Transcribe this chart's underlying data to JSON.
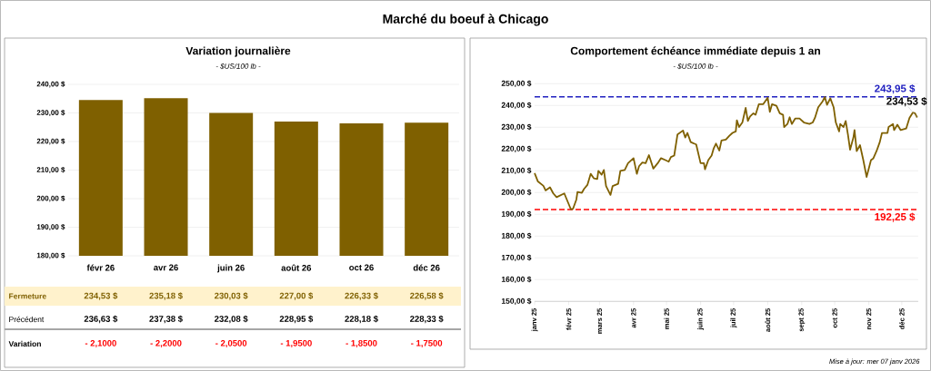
{
  "chart_data": [
    {
      "type": "other",
      "title": "Marché du boeuf à Chicago",
      "annotations": [
        "Mise à jour: mer 07 janv 2026"
      ]
    },
    {
      "type": "bar",
      "title": "Variation journalière",
      "subtitle": "- $US/100 lb -",
      "categories": [
        "févr 26",
        "avr 26",
        "juin 26",
        "août 26",
        "oct 26",
        "déc 26"
      ],
      "series": [
        {
          "name": "Fermeture",
          "color": "#7f6000",
          "values": [
            234.53,
            235.18,
            230.03,
            227.0,
            226.33,
            226.58
          ],
          "value_labels": [
            "234,53  $",
            "235,18  $",
            "230,03  $",
            "227,00  $",
            "226,33  $",
            "226,58  $"
          ]
        }
      ],
      "ylim": [
        180,
        240
      ],
      "yticks": [
        {
          "value": 180,
          "label": "180,00 $"
        },
        {
          "value": 190,
          "label": "190,00 $"
        },
        {
          "value": 200,
          "label": "200,00 $"
        },
        {
          "value": 210,
          "label": "210,00 $"
        },
        {
          "value": 220,
          "label": "220,00 $"
        },
        {
          "value": 230,
          "label": "230,00 $"
        },
        {
          "value": 240,
          "label": "240,00 $"
        }
      ],
      "grid": "y"
    },
    {
      "type": "other",
      "annotations": [
        "Précédent",
        "236,63  $",
        "237,38  $",
        "232,08  $",
        "228,95  $",
        "228,18  $",
        "228,33  $",
        "Variation",
        "- 2,1000",
        "- 2,2000",
        "- 2,0500",
        "- 1,9500",
        "- 1,8500",
        "- 1,7500"
      ]
    },
    {
      "type": "line",
      "title": "Comportement échéance immédiate depuis 1 an",
      "subtitle": "- $US/100 lb -",
      "x": [
        "2025-01-01",
        "2025-01-04",
        "2025-01-09",
        "2025-01-11",
        "2025-01-15",
        "2025-01-18",
        "2025-01-21",
        "2025-01-28",
        "2025-02-03",
        "2025-02-05",
        "2025-02-08",
        "2025-02-09",
        "2025-02-13",
        "2025-02-15",
        "2025-02-18",
        "2025-02-21",
        "2025-02-24",
        "2025-02-27",
        "2025-02-28",
        "2025-03-03",
        "2025-03-05",
        "2025-03-07",
        "2025-03-11",
        "2025-03-13",
        "2025-03-18",
        "2025-03-20",
        "2025-03-24",
        "2025-03-27",
        "2025-04-01",
        "2025-04-04",
        "2025-04-06",
        "2025-04-09",
        "2025-04-12",
        "2025-04-15",
        "2025-04-19",
        "2025-04-23",
        "2025-04-26",
        "2025-04-30",
        "2025-05-03",
        "2025-05-05",
        "2025-05-08",
        "2025-05-11",
        "2025-05-16",
        "2025-05-18",
        "2025-05-20",
        "2025-05-23",
        "2025-05-28",
        "2025-06-01",
        "2025-06-04",
        "2025-06-05",
        "2025-06-08",
        "2025-06-11",
        "2025-06-13",
        "2025-06-15",
        "2025-06-18",
        "2025-06-20",
        "2025-06-24",
        "2025-06-27",
        "2025-06-30",
        "2025-07-03",
        "2025-07-04",
        "2025-07-06",
        "2025-07-09",
        "2025-07-12",
        "2025-07-14",
        "2025-07-16",
        "2025-07-19",
        "2025-07-21",
        "2025-07-24",
        "2025-07-28",
        "2025-08-01",
        "2025-08-03",
        "2025-08-05",
        "2025-08-09",
        "2025-08-12",
        "2025-08-15",
        "2025-08-16",
        "2025-08-19",
        "2025-08-21",
        "2025-08-23",
        "2025-08-26",
        "2025-08-30",
        "2025-09-03",
        "2025-09-08",
        "2025-09-11",
        "2025-09-13",
        "2025-09-16",
        "2025-09-20",
        "2025-09-22",
        "2025-09-24",
        "2025-09-27",
        "2025-09-30",
        "2025-10-02",
        "2025-10-05",
        "2025-10-06",
        "2025-10-09",
        "2025-10-11",
        "2025-10-13",
        "2025-10-15",
        "2025-10-18",
        "2025-10-19",
        "2025-10-21",
        "2025-10-24",
        "2025-10-27",
        "2025-10-30",
        "2025-11-03",
        "2025-11-05",
        "2025-11-08",
        "2025-11-11",
        "2025-11-13",
        "2025-11-18",
        "2025-11-19",
        "2025-11-23",
        "2025-11-24",
        "2025-11-27",
        "2025-11-30",
        "2025-12-05",
        "2025-12-08",
        "2025-12-11",
        "2025-12-13",
        "2025-12-15"
      ],
      "series": [
        {
          "color": "#7f6000",
          "values": [
            208.9,
            205.1,
            203.1,
            201.0,
            202.4,
            199.6,
            197.9,
            199.6,
            192.3,
            192.6,
            196.8,
            200.3,
            199.9,
            201.7,
            203.5,
            208.6,
            206.5,
            206.2,
            210.0,
            208.2,
            210.4,
            203.0,
            198.9,
            203.0,
            204.0,
            210.0,
            210.4,
            213.5,
            215.8,
            208.6,
            212.1,
            213.8,
            213.5,
            217.2,
            211.0,
            213.5,
            215.8,
            214.9,
            214.2,
            216.3,
            217.0,
            226.7,
            228.5,
            225.3,
            227.4,
            223.2,
            222.1,
            213.5,
            213.5,
            210.7,
            214.9,
            217.0,
            220.4,
            222.5,
            219.3,
            223.9,
            224.3,
            226.0,
            227.4,
            228.1,
            233.2,
            230.1,
            232.2,
            238.9,
            232.9,
            235.0,
            236.4,
            235.7,
            240.6,
            240.6,
            243.6,
            237.1,
            240.6,
            239.9,
            236.4,
            235.7,
            230.1,
            231.5,
            234.6,
            231.5,
            234.0,
            234.0,
            232.2,
            231.5,
            232.2,
            234.3,
            239.2,
            241.9,
            243.9,
            240.3,
            243.3,
            239.2,
            232.2,
            228.1,
            231.5,
            230.1,
            232.9,
            226.7,
            219.7,
            225.3,
            228.7,
            219.0,
            221.8,
            214.9,
            207.2,
            214.9,
            215.6,
            219.0,
            223.2,
            227.4,
            227.4,
            230.1,
            231.5,
            228.7,
            231.2,
            228.7,
            229.4,
            234.3,
            236.7,
            236.4,
            234.5
          ]
        }
      ],
      "xlim": [
        "2025-01-01",
        "2025-12-16"
      ],
      "xticks": [
        {
          "value": "2025-01",
          "label": "janv 25"
        },
        {
          "value": "2025-02",
          "label": "févr 25"
        },
        {
          "value": "2025-03",
          "label": "mars 25"
        },
        {
          "value": "2025-04",
          "label": "avr 25"
        },
        {
          "value": "2025-05",
          "label": "mai 25"
        },
        {
          "value": "2025-06",
          "label": "juin 25"
        },
        {
          "value": "2025-07",
          "label": "juil 25"
        },
        {
          "value": "2025-08",
          "label": "août 25"
        },
        {
          "value": "2025-09",
          "label": "sept 25"
        },
        {
          "value": "2025-10",
          "label": "oct 25"
        },
        {
          "value": "2025-11",
          "label": "nov 25"
        },
        {
          "value": "2025-12",
          "label": "déc 25"
        }
      ],
      "ylim": [
        150,
        250
      ],
      "yticks": [
        {
          "value": 150,
          "label": "150,00 $"
        },
        {
          "value": 160,
          "label": "160,00 $"
        },
        {
          "value": 170,
          "label": "170,00 $"
        },
        {
          "value": 180,
          "label": "180,00 $"
        },
        {
          "value": 190,
          "label": "190,00 $"
        },
        {
          "value": 200,
          "label": "200,00 $"
        },
        {
          "value": 210,
          "label": "210,00 $"
        },
        {
          "value": 220,
          "label": "220,00 $"
        },
        {
          "value": 230,
          "label": "230,00 $"
        },
        {
          "value": 240,
          "label": "240,00 $"
        },
        {
          "value": 250,
          "label": "250,00 $"
        }
      ],
      "grid": "y",
      "ref_lines": [
        {
          "axis": "y",
          "value": 243.95,
          "label": "243,95 $",
          "color": "#2020c0",
          "line_style": "dashed"
        },
        {
          "axis": "y",
          "value": 192.25,
          "label": "192,25 $",
          "color": "#ff0000",
          "line_style": "dashed"
        }
      ],
      "annotations": [
        {
          "text": "234,53 $",
          "x": "2025-12-15",
          "y": 234.5
        }
      ]
    }
  ]
}
